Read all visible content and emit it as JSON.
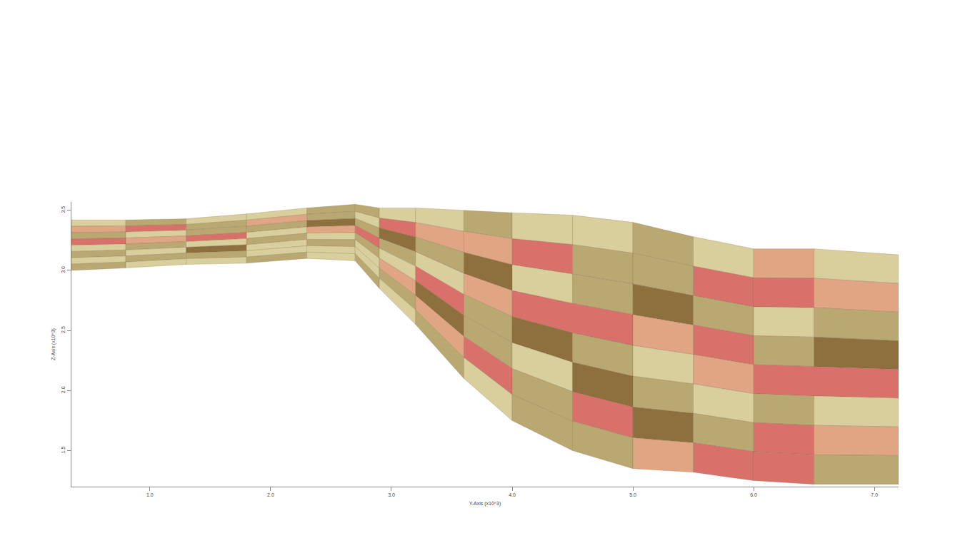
{
  "chart_data": {
    "type": "section",
    "xlabel": "Y-Axis (x10^3)",
    "ylabel": "Z-Axis (x10^3)",
    "x": [
      0.35,
      0.8,
      1.3,
      1.8,
      2.3,
      2.7,
      2.9,
      3.2,
      3.6,
      4.0,
      4.5,
      5.0,
      5.5,
      6.0,
      6.5,
      7.2
    ],
    "top": [
      3.42,
      3.42,
      3.43,
      3.47,
      3.52,
      3.55,
      3.52,
      3.52,
      3.5,
      3.48,
      3.46,
      3.4,
      3.28,
      3.18,
      3.18,
      3.13
    ],
    "bottom": [
      3.0,
      3.02,
      3.05,
      3.06,
      3.1,
      3.08,
      2.85,
      2.55,
      2.1,
      1.75,
      1.5,
      1.35,
      1.32,
      1.25,
      1.22,
      1.22
    ],
    "cells": [
      [
        0,
        1,
        0,
        0,
        1,
        1,
        0,
        0,
        1,
        0,
        0,
        1,
        0,
        3,
        0
      ],
      [
        3,
        4,
        1,
        3,
        1,
        0,
        4,
        3,
        3,
        4,
        1,
        1,
        4,
        4,
        3
      ],
      [
        1,
        0,
        1,
        1,
        2,
        1,
        2,
        1,
        2,
        0,
        1,
        2,
        1,
        0,
        1
      ],
      [
        4,
        3,
        4,
        0,
        3,
        4,
        1,
        0,
        3,
        4,
        4,
        3,
        4,
        1,
        2
      ],
      [
        0,
        1,
        0,
        1,
        0,
        1,
        0,
        4,
        1,
        2,
        1,
        0,
        3,
        4,
        4
      ],
      [
        1,
        0,
        2,
        0,
        1,
        0,
        3,
        2,
        1,
        0,
        2,
        1,
        0,
        1,
        0
      ],
      [
        0,
        1,
        1,
        0,
        0,
        0,
        1,
        3,
        4,
        1,
        4,
        2,
        1,
        4,
        3
      ],
      [
        1,
        0,
        0,
        1,
        0,
        1,
        0,
        1,
        0,
        1,
        1,
        3,
        4,
        4,
        1
      ]
    ],
    "colors": [
      "#d8cf9c",
      "#baa873",
      "#8e6f3e",
      "#e0a683",
      "#d9716b"
    ],
    "xlim": [
      0.35,
      7.2
    ],
    "ylim": [
      1.2,
      3.57
    ],
    "xticks": [
      {
        "value": 1,
        "label": "1.0"
      },
      {
        "value": 2,
        "label": "2.0"
      },
      {
        "value": 3,
        "label": "3.0"
      },
      {
        "value": 4,
        "label": "4.0"
      },
      {
        "value": 5,
        "label": "5.0"
      },
      {
        "value": 6,
        "label": "6.0"
      },
      {
        "value": 7,
        "label": "7.0"
      }
    ],
    "yticks": [
      1.5,
      {
        "value": 2,
        "label": "2.0"
      },
      2.5,
      {
        "value": 3,
        "label": "3.0"
      },
      3.5
    ],
    "grid": false
  }
}
